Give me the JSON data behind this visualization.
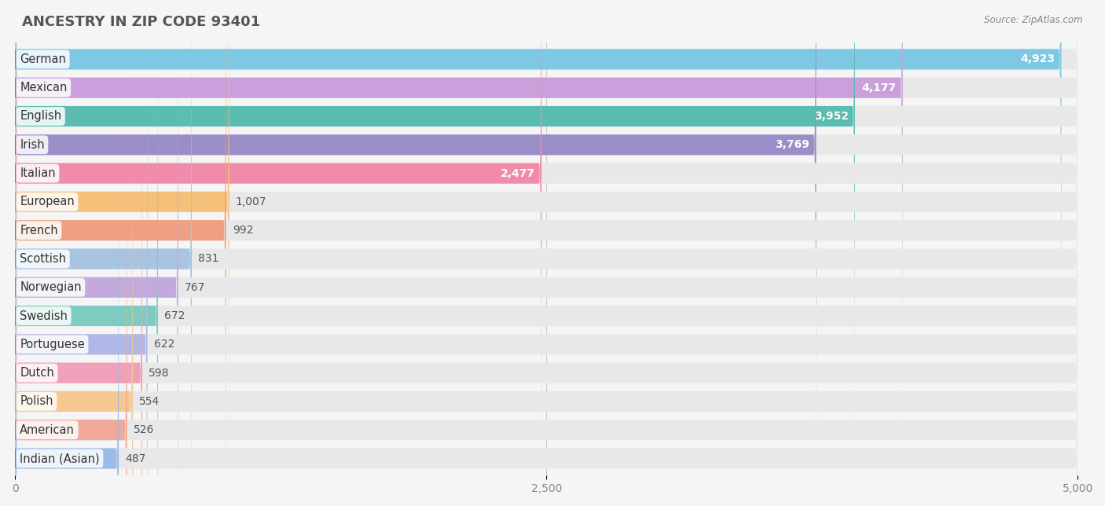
{
  "title": "ANCESTRY IN ZIP CODE 93401",
  "source": "Source: ZipAtlas.com",
  "categories": [
    "German",
    "Mexican",
    "English",
    "Irish",
    "Italian",
    "European",
    "French",
    "Scottish",
    "Norwegian",
    "Swedish",
    "Portuguese",
    "Dutch",
    "Polish",
    "American",
    "Indian (Asian)"
  ],
  "values": [
    4923,
    4177,
    3952,
    3769,
    2477,
    1007,
    992,
    831,
    767,
    672,
    622,
    598,
    554,
    526,
    487
  ],
  "bar_colors": [
    "#7EC8E3",
    "#C9A0DC",
    "#5BBCB0",
    "#9B8DC8",
    "#F08BAA",
    "#F5C07A",
    "#F0A080",
    "#A8C4E0",
    "#C4AADC",
    "#7ECCC0",
    "#B0B8E8",
    "#F0A0B8",
    "#F5C890",
    "#F0A898",
    "#9ABCE8"
  ],
  "icon_colors": [
    "#4499CC",
    "#9966BB",
    "#33AAAA",
    "#7766BB",
    "#EE4488",
    "#EE9922",
    "#CC6644",
    "#6699CC",
    "#9977BB",
    "#33AAAA",
    "#7788CC",
    "#EE6699",
    "#EEA833",
    "#CC7766",
    "#5588CC"
  ],
  "xlim": [
    0,
    5000
  ],
  "xticks": [
    0,
    2500,
    5000
  ],
  "xtick_labels": [
    "0",
    "2,500",
    "5,000"
  ],
  "background_color": "#f5f5f5",
  "bar_background": "#e8e8e8",
  "title_fontsize": 13,
  "label_fontsize": 10.5,
  "value_fontsize": 10
}
